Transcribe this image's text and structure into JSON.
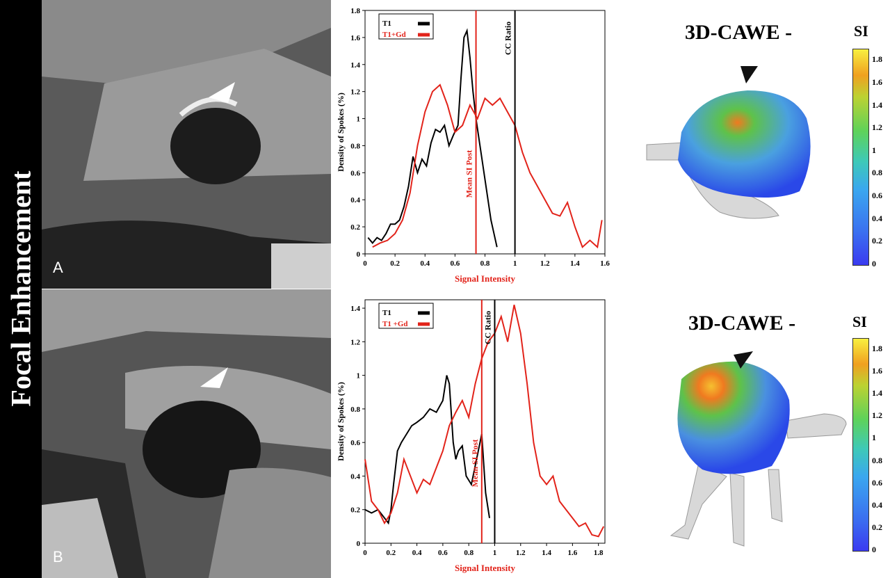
{
  "side_label": "Focal Enhancement",
  "panels": [
    {
      "letter": "A",
      "cawe_title": "3D-CAWE -",
      "si_label": "SI"
    },
    {
      "letter": "B",
      "cawe_title": "3D-CAWE -",
      "si_label": "SI"
    }
  ],
  "colorbar": {
    "ticks": [
      "1.8",
      "1.6",
      "1.4",
      "1.2",
      "1",
      "0.8",
      "0.6",
      "0.4",
      "0.2",
      "0"
    ],
    "colors": [
      "#3a3af0",
      "#3aa7ef",
      "#5ed25a",
      "#f0a020",
      "#f8f040"
    ]
  },
  "colors": {
    "t1": "#000000",
    "t1gd": "#e2231a"
  },
  "chart_data": [
    {
      "type": "line",
      "xlabel": "Signal Intensity",
      "ylabel": "Density of Spokes (%)",
      "xlim": [
        0,
        1.6
      ],
      "ylim": [
        0,
        1.8
      ],
      "xticks": [
        "0",
        "0.2",
        "0.4",
        "0.6",
        "0.8",
        "1",
        "1.2",
        "1.4",
        "1.6"
      ],
      "yticks": [
        "0",
        "0.2",
        "0.4",
        "0.6",
        "0.8",
        "1",
        "1.2",
        "1.4",
        "1.6",
        "1.8"
      ],
      "legend": [
        "T1",
        "T1+Gd"
      ],
      "series": [
        {
          "name": "T1",
          "color": "#000000",
          "x": [
            0.02,
            0.05,
            0.08,
            0.11,
            0.14,
            0.17,
            0.2,
            0.23,
            0.26,
            0.29,
            0.32,
            0.35,
            0.38,
            0.41,
            0.44,
            0.47,
            0.5,
            0.53,
            0.56,
            0.59,
            0.62,
            0.64,
            0.66,
            0.68,
            0.7,
            0.72,
            0.74,
            0.76,
            0.78,
            0.8,
            0.82,
            0.84,
            0.86,
            0.88
          ],
          "y": [
            0.12,
            0.08,
            0.12,
            0.1,
            0.15,
            0.22,
            0.22,
            0.25,
            0.35,
            0.5,
            0.72,
            0.6,
            0.7,
            0.65,
            0.82,
            0.92,
            0.9,
            0.95,
            0.8,
            0.88,
            0.95,
            1.3,
            1.6,
            1.65,
            1.45,
            1.2,
            1.0,
            0.85,
            0.7,
            0.55,
            0.4,
            0.25,
            0.15,
            0.05
          ]
        },
        {
          "name": "T1+Gd",
          "color": "#e2231a",
          "x": [
            0.05,
            0.1,
            0.15,
            0.2,
            0.25,
            0.3,
            0.35,
            0.4,
            0.45,
            0.5,
            0.55,
            0.6,
            0.65,
            0.7,
            0.75,
            0.8,
            0.85,
            0.9,
            0.95,
            1.0,
            1.05,
            1.1,
            1.15,
            1.2,
            1.25,
            1.3,
            1.35,
            1.4,
            1.45,
            1.5,
            1.55,
            1.58
          ],
          "y": [
            0.05,
            0.08,
            0.1,
            0.15,
            0.25,
            0.45,
            0.8,
            1.05,
            1.2,
            1.25,
            1.1,
            0.9,
            0.95,
            1.1,
            1.0,
            1.15,
            1.1,
            1.15,
            1.05,
            0.95,
            0.75,
            0.6,
            0.5,
            0.4,
            0.3,
            0.28,
            0.38,
            0.2,
            0.05,
            0.1,
            0.05,
            0.25
          ]
        }
      ],
      "vlines": [
        {
          "x": 0.74,
          "label": "Mean SI Post",
          "color": "#e2231a"
        },
        {
          "x": 1.0,
          "label": "CC Ratio",
          "color": "#000000"
        }
      ]
    },
    {
      "type": "line",
      "xlabel": "Signal Intensity",
      "ylabel": "Density of Spokes (%)",
      "xlim": [
        0,
        1.85
      ],
      "ylim": [
        0,
        1.45
      ],
      "xticks": [
        "0",
        "0.2",
        "0.4",
        "0.6",
        "0.8",
        "1",
        "1.2",
        "1.4",
        "1.6",
        "1.8"
      ],
      "yticks": [
        "0",
        "0.2",
        "0.4",
        "0.6",
        "0.8",
        "1",
        "1.2",
        "1.4"
      ],
      "legend": [
        "T1",
        "T1 +Gd"
      ],
      "series": [
        {
          "name": "T1",
          "color": "#000000",
          "x": [
            0.0,
            0.05,
            0.1,
            0.15,
            0.18,
            0.2,
            0.22,
            0.25,
            0.28,
            0.32,
            0.36,
            0.4,
            0.45,
            0.5,
            0.55,
            0.6,
            0.63,
            0.65,
            0.68,
            0.7,
            0.72,
            0.75,
            0.78,
            0.82,
            0.86,
            0.9,
            0.93,
            0.96
          ],
          "y": [
            0.2,
            0.18,
            0.2,
            0.15,
            0.12,
            0.2,
            0.35,
            0.55,
            0.6,
            0.65,
            0.7,
            0.72,
            0.75,
            0.8,
            0.78,
            0.85,
            1.0,
            0.95,
            0.6,
            0.5,
            0.55,
            0.58,
            0.4,
            0.35,
            0.5,
            0.65,
            0.3,
            0.15
          ]
        },
        {
          "name": "T1 +Gd",
          "color": "#e2231a",
          "x": [
            0.0,
            0.05,
            0.1,
            0.15,
            0.2,
            0.25,
            0.3,
            0.35,
            0.4,
            0.45,
            0.5,
            0.55,
            0.6,
            0.65,
            0.7,
            0.75,
            0.8,
            0.85,
            0.9,
            0.95,
            1.0,
            1.05,
            1.1,
            1.15,
            1.2,
            1.25,
            1.3,
            1.35,
            1.4,
            1.45,
            1.5,
            1.55,
            1.6,
            1.65,
            1.7,
            1.75,
            1.8,
            1.84
          ],
          "y": [
            0.5,
            0.25,
            0.2,
            0.12,
            0.18,
            0.3,
            0.5,
            0.4,
            0.3,
            0.38,
            0.35,
            0.45,
            0.55,
            0.7,
            0.78,
            0.85,
            0.75,
            0.95,
            1.1,
            1.2,
            1.25,
            1.35,
            1.2,
            1.42,
            1.25,
            0.95,
            0.6,
            0.4,
            0.35,
            0.4,
            0.25,
            0.2,
            0.15,
            0.1,
            0.12,
            0.05,
            0.04,
            0.1
          ]
        }
      ],
      "vlines": [
        {
          "x": 0.9,
          "label": "Mean SI Post",
          "color": "#e2231a"
        },
        {
          "x": 1.0,
          "label": "CC Ratio",
          "color": "#000000"
        }
      ]
    }
  ]
}
